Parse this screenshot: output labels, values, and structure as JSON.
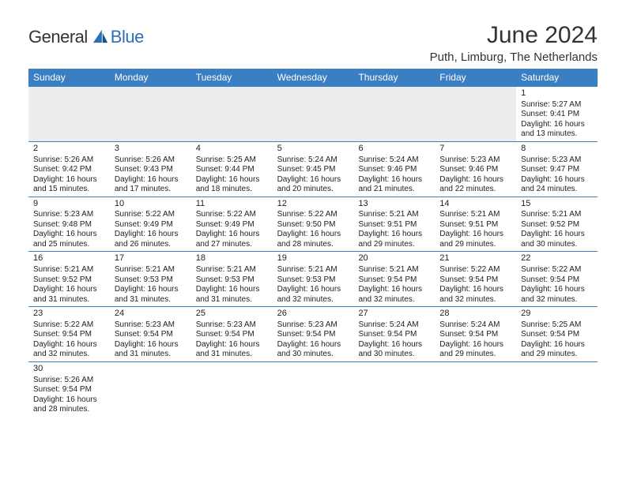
{
  "brand": {
    "word1": "General",
    "word2": "Blue",
    "text_color": "#333333",
    "accent_color": "#2d6fb8"
  },
  "title": "June 2024",
  "location": "Puth, Limburg, The Netherlands",
  "theme": {
    "header_bg": "#3a7fc4",
    "header_fg": "#ffffff",
    "border_color": "#3a7fc4",
    "blank_bg": "#ededed",
    "page_bg": "#ffffff",
    "text_color": "#222222"
  },
  "day_names": [
    "Sunday",
    "Monday",
    "Tuesday",
    "Wednesday",
    "Thursday",
    "Friday",
    "Saturday"
  ],
  "weeks": [
    [
      null,
      null,
      null,
      null,
      null,
      null,
      {
        "d": "1",
        "sr": "5:27 AM",
        "ss": "9:41 PM",
        "dl1": "16 hours",
        "dl2": "and 13 minutes."
      }
    ],
    [
      {
        "d": "2",
        "sr": "5:26 AM",
        "ss": "9:42 PM",
        "dl1": "16 hours",
        "dl2": "and 15 minutes."
      },
      {
        "d": "3",
        "sr": "5:26 AM",
        "ss": "9:43 PM",
        "dl1": "16 hours",
        "dl2": "and 17 minutes."
      },
      {
        "d": "4",
        "sr": "5:25 AM",
        "ss": "9:44 PM",
        "dl1": "16 hours",
        "dl2": "and 18 minutes."
      },
      {
        "d": "5",
        "sr": "5:24 AM",
        "ss": "9:45 PM",
        "dl1": "16 hours",
        "dl2": "and 20 minutes."
      },
      {
        "d": "6",
        "sr": "5:24 AM",
        "ss": "9:46 PM",
        "dl1": "16 hours",
        "dl2": "and 21 minutes."
      },
      {
        "d": "7",
        "sr": "5:23 AM",
        "ss": "9:46 PM",
        "dl1": "16 hours",
        "dl2": "and 22 minutes."
      },
      {
        "d": "8",
        "sr": "5:23 AM",
        "ss": "9:47 PM",
        "dl1": "16 hours",
        "dl2": "and 24 minutes."
      }
    ],
    [
      {
        "d": "9",
        "sr": "5:23 AM",
        "ss": "9:48 PM",
        "dl1": "16 hours",
        "dl2": "and 25 minutes."
      },
      {
        "d": "10",
        "sr": "5:22 AM",
        "ss": "9:49 PM",
        "dl1": "16 hours",
        "dl2": "and 26 minutes."
      },
      {
        "d": "11",
        "sr": "5:22 AM",
        "ss": "9:49 PM",
        "dl1": "16 hours",
        "dl2": "and 27 minutes."
      },
      {
        "d": "12",
        "sr": "5:22 AM",
        "ss": "9:50 PM",
        "dl1": "16 hours",
        "dl2": "and 28 minutes."
      },
      {
        "d": "13",
        "sr": "5:21 AM",
        "ss": "9:51 PM",
        "dl1": "16 hours",
        "dl2": "and 29 minutes."
      },
      {
        "d": "14",
        "sr": "5:21 AM",
        "ss": "9:51 PM",
        "dl1": "16 hours",
        "dl2": "and 29 minutes."
      },
      {
        "d": "15",
        "sr": "5:21 AM",
        "ss": "9:52 PM",
        "dl1": "16 hours",
        "dl2": "and 30 minutes."
      }
    ],
    [
      {
        "d": "16",
        "sr": "5:21 AM",
        "ss": "9:52 PM",
        "dl1": "16 hours",
        "dl2": "and 31 minutes."
      },
      {
        "d": "17",
        "sr": "5:21 AM",
        "ss": "9:53 PM",
        "dl1": "16 hours",
        "dl2": "and 31 minutes."
      },
      {
        "d": "18",
        "sr": "5:21 AM",
        "ss": "9:53 PM",
        "dl1": "16 hours",
        "dl2": "and 31 minutes."
      },
      {
        "d": "19",
        "sr": "5:21 AM",
        "ss": "9:53 PM",
        "dl1": "16 hours",
        "dl2": "and 32 minutes."
      },
      {
        "d": "20",
        "sr": "5:21 AM",
        "ss": "9:54 PM",
        "dl1": "16 hours",
        "dl2": "and 32 minutes."
      },
      {
        "d": "21",
        "sr": "5:22 AM",
        "ss": "9:54 PM",
        "dl1": "16 hours",
        "dl2": "and 32 minutes."
      },
      {
        "d": "22",
        "sr": "5:22 AM",
        "ss": "9:54 PM",
        "dl1": "16 hours",
        "dl2": "and 32 minutes."
      }
    ],
    [
      {
        "d": "23",
        "sr": "5:22 AM",
        "ss": "9:54 PM",
        "dl1": "16 hours",
        "dl2": "and 32 minutes."
      },
      {
        "d": "24",
        "sr": "5:23 AM",
        "ss": "9:54 PM",
        "dl1": "16 hours",
        "dl2": "and 31 minutes."
      },
      {
        "d": "25",
        "sr": "5:23 AM",
        "ss": "9:54 PM",
        "dl1": "16 hours",
        "dl2": "and 31 minutes."
      },
      {
        "d": "26",
        "sr": "5:23 AM",
        "ss": "9:54 PM",
        "dl1": "16 hours",
        "dl2": "and 30 minutes."
      },
      {
        "d": "27",
        "sr": "5:24 AM",
        "ss": "9:54 PM",
        "dl1": "16 hours",
        "dl2": "and 30 minutes."
      },
      {
        "d": "28",
        "sr": "5:24 AM",
        "ss": "9:54 PM",
        "dl1": "16 hours",
        "dl2": "and 29 minutes."
      },
      {
        "d": "29",
        "sr": "5:25 AM",
        "ss": "9:54 PM",
        "dl1": "16 hours",
        "dl2": "and 29 minutes."
      }
    ],
    [
      {
        "d": "30",
        "sr": "5:26 AM",
        "ss": "9:54 PM",
        "dl1": "16 hours",
        "dl2": "and 28 minutes."
      },
      null,
      null,
      null,
      null,
      null,
      null
    ]
  ],
  "labels": {
    "sunrise": "Sunrise:",
    "sunset": "Sunset:",
    "daylight": "Daylight:"
  }
}
